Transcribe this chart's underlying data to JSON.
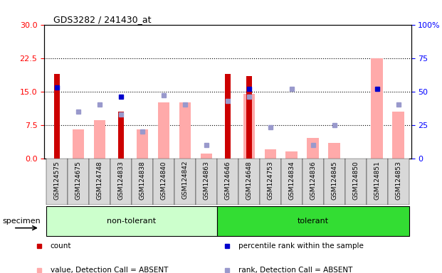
{
  "title": "GDS3282 / 241430_at",
  "samples": [
    "GSM124575",
    "GSM124675",
    "GSM124748",
    "GSM124833",
    "GSM124838",
    "GSM124840",
    "GSM124842",
    "GSM124863",
    "GSM124646",
    "GSM124648",
    "GSM124753",
    "GSM124834",
    "GSM124836",
    "GSM124845",
    "GSM124850",
    "GSM124851",
    "GSM124853"
  ],
  "non_tolerant": [
    "GSM124575",
    "GSM124675",
    "GSM124748",
    "GSM124833",
    "GSM124838",
    "GSM124840",
    "GSM124842",
    "GSM124863"
  ],
  "tolerant": [
    "GSM124646",
    "GSM124648",
    "GSM124753",
    "GSM124834",
    "GSM124836",
    "GSM124845",
    "GSM124850",
    "GSM124851",
    "GSM124853"
  ],
  "count_values": [
    19.0,
    0,
    0,
    10.5,
    0,
    0,
    0,
    0,
    19.0,
    18.5,
    0,
    0,
    0,
    0,
    0,
    0,
    0
  ],
  "pink_bar_values": [
    0,
    6.5,
    8.5,
    0,
    6.5,
    12.5,
    12.5,
    1.0,
    0,
    14.5,
    2.0,
    1.5,
    4.5,
    3.5,
    0,
    22.5,
    10.5
  ],
  "blue_square_values": [
    53,
    0,
    0,
    46,
    0,
    0,
    0,
    0,
    0,
    52,
    0,
    0,
    0,
    0,
    0,
    52,
    0
  ],
  "light_blue_square_values": [
    0,
    35,
    40,
    33,
    20,
    47,
    40,
    10,
    43,
    46,
    23,
    52,
    10,
    25,
    0,
    0,
    40
  ],
  "left_ylim": [
    0,
    30
  ],
  "right_ylim": [
    0,
    100
  ],
  "left_yticks": [
    0,
    7.5,
    15.0,
    22.5,
    30
  ],
  "right_yticks": [
    0,
    25,
    50,
    75,
    100
  ],
  "right_yticklabels": [
    "0",
    "25",
    "50",
    "75",
    "100%"
  ],
  "hlines": [
    7.5,
    15.0,
    22.5
  ],
  "count_color": "#cc0000",
  "pink_color": "#ffaaaa",
  "blue_color": "#0000cc",
  "light_blue_color": "#9999cc",
  "non_tol_color": "#ccffcc",
  "tol_color": "#33dd33",
  "plot_bg_color": "#ffffff",
  "gray_bg_color": "#d8d8d8"
}
